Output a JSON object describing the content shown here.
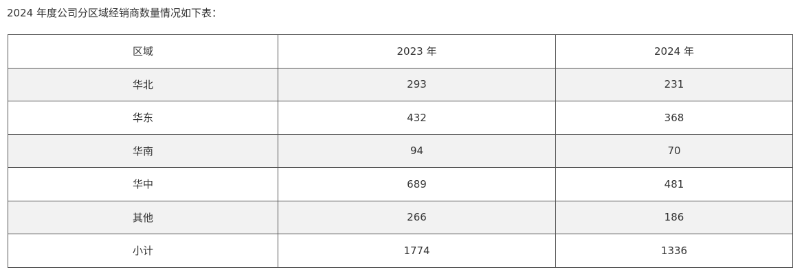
{
  "intro": "2024 年度公司分区域经销商数量情况如下表：",
  "table": {
    "headers": [
      "区域",
      "2023 年",
      "2024 年"
    ],
    "rows": [
      [
        "华北",
        "293",
        "231"
      ],
      [
        "华东",
        "432",
        "368"
      ],
      [
        "华南",
        "94",
        "70"
      ],
      [
        "华中",
        "689",
        "481"
      ],
      [
        "其他",
        "266",
        "186"
      ],
      [
        "小计",
        "1774",
        "1336"
      ]
    ]
  }
}
